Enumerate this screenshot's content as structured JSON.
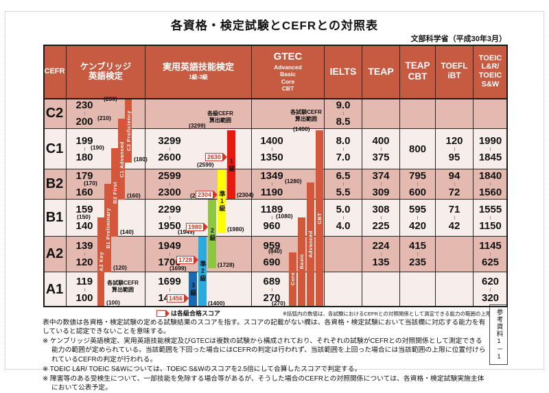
{
  "page": {
    "title": "各資格・検定試験とCEFRとの対照表",
    "source": "文部科学省（平成30年3月）",
    "side_label": "参考資料1－1"
  },
  "columns": [
    {
      "key": "cefr",
      "label": "CEFR"
    },
    {
      "key": "cambridge",
      "label": "ケンブリッジ\n英語検定"
    },
    {
      "key": "eiken",
      "label": "実用英語技能検定",
      "sub": "1級-3級"
    },
    {
      "key": "gtec",
      "label": "GTEC",
      "sub": "Advanced\nBasic\nCore\nCBT"
    },
    {
      "key": "ielts",
      "label": "IELTS"
    },
    {
      "key": "teap",
      "label": "TEAP"
    },
    {
      "key": "teap_cbt",
      "label": "TEAP\nCBT"
    },
    {
      "key": "toefl_ibt",
      "label": "TOEFL\niBT"
    },
    {
      "key": "toeic",
      "label": "TOEIC\nL&R/\nTOEIC\nS&W"
    }
  ],
  "rows": [
    {
      "level": "C2",
      "cambridge": [
        "230",
        "200"
      ],
      "eiken": null,
      "gtec": null,
      "ielts": [
        "9.0",
        "8.5"
      ],
      "teap": null,
      "teap_cbt": null,
      "toefl_ibt": null,
      "toeic": null
    },
    {
      "level": "C1",
      "cambridge": [
        "199",
        "180"
      ],
      "eiken": [
        "3299",
        "2600"
      ],
      "gtec": [
        "1400",
        "1350"
      ],
      "ielts": [
        "8.0",
        "7.0"
      ],
      "teap": [
        "400",
        "375"
      ],
      "teap_cbt": [
        "800"
      ],
      "toefl_ibt": [
        "120",
        "95"
      ],
      "toeic": [
        "1990",
        "1845"
      ]
    },
    {
      "level": "B2",
      "cambridge": [
        "179",
        "160"
      ],
      "eiken": [
        "2599",
        "2300"
      ],
      "gtec": [
        "1349",
        "1190"
      ],
      "ielts": [
        "6.5",
        "5.5"
      ],
      "teap": [
        "374",
        "309"
      ],
      "teap_cbt": [
        "795",
        "600"
      ],
      "toefl_ibt": [
        "94",
        "72"
      ],
      "toeic": [
        "1840",
        "1560"
      ]
    },
    {
      "level": "B1",
      "cambridge": [
        "159",
        "140"
      ],
      "eiken": [
        "2299",
        "1950"
      ],
      "gtec": [
        "1189",
        "960"
      ],
      "ielts": [
        "5.0",
        "4.0"
      ],
      "teap": [
        "308",
        "225"
      ],
      "teap_cbt": [
        "595",
        "420"
      ],
      "toefl_ibt": [
        "71",
        "42"
      ],
      "toeic": [
        "1555",
        "1150"
      ]
    },
    {
      "level": "A2",
      "cambridge": [
        "139",
        "120"
      ],
      "eiken": [
        "1949",
        "1700"
      ],
      "gtec": [
        "959",
        "690"
      ],
      "ielts": null,
      "teap": [
        "224",
        "135"
      ],
      "teap_cbt": [
        "415",
        "235"
      ],
      "toefl_ibt": null,
      "toeic": [
        "1145",
        "625"
      ]
    },
    {
      "level": "A1",
      "cambridge": [
        "119",
        "100"
      ],
      "eiken": [
        "1699",
        "1400"
      ],
      "gtec": [
        "689",
        "270"
      ],
      "ielts": null,
      "teap": null,
      "teap_cbt": null,
      "toefl_ibt": null,
      "toeic": [
        "620",
        "320"
      ]
    }
  ],
  "range_notes": {
    "cambridge": "各試験CEFR\n算出範囲",
    "eiken": "各級CEFR\n算出範囲",
    "gtec": "各試験CEFR\n算出範囲"
  },
  "bars": {
    "cambridge": [
      {
        "label": "A2 Key",
        "top": "(150)",
        "bottom": "(100)",
        "color": "#d3573a"
      },
      {
        "label": "B1 Preliminary",
        "top": "(170)",
        "bottom": "(120)",
        "color": "#d3573a"
      },
      {
        "label": "B2 First",
        "top": "(190)",
        "bottom": "(140)",
        "color": "#d3573a"
      },
      {
        "label": "C1 Advanced",
        "top": "(210)",
        "bottom": "(160)",
        "color": "#d3573a"
      },
      {
        "label": "C2 Proficiency",
        "top": "(230)",
        "bottom": "(180)",
        "color": "#d3573a"
      }
    ],
    "eiken": [
      {
        "label": "3級",
        "top": "(1699)",
        "bottom": "",
        "pass": "1456",
        "color": "#1a69b4"
      },
      {
        "label": "準2級",
        "top": "(1949)",
        "bottom": "(1400)",
        "pass": "1728",
        "color": "#29aae1"
      },
      {
        "label": "2級",
        "top": "(2299)",
        "bottom": "(1728)",
        "pass": "1980",
        "color": "#8dc63f"
      },
      {
        "label": "準1級",
        "top": "(2599)",
        "bottom": "(1980)",
        "pass": "2304",
        "color": "#ffff00"
      },
      {
        "label": "1級",
        "top": "(3299)",
        "bottom": "(2304)",
        "pass": "2630",
        "color": "#e8190f"
      }
    ],
    "gtec": [
      {
        "label": "Core",
        "top": "(840)",
        "bottom": "(270)",
        "color": "#d3573a"
      },
      {
        "label": "Basic",
        "top": "(1080)",
        "bottom": "",
        "color": "#d3573a"
      },
      {
        "label": "Advanced",
        "top": "(1280)",
        "bottom": "",
        "color": "#d3573a"
      },
      {
        "label": "CBT",
        "top": "(1400)",
        "bottom": "",
        "color": "#d3573a"
      }
    ]
  },
  "legend": {
    "pass_score": "は各級合格スコア",
    "bracket_note": "※括弧内の数値は、各試験におけるCEFRとの対照関係として測定できる能力の範囲の上限と下限"
  },
  "notes": [
    "表中の数値は各資格・検定試験の定める試験結果のスコアを指す。スコアの記載がない欄は、各資格・検定試験において当該欄に対応する能力を有していると認定できないことを意味する。",
    "※ ケンブリッジ英語検定、実用英語技能検定及びGTECは複数の試験から構成されており、それぞれの試験がCEFRとの対照関係として測定できる能力の範囲が定められている。当該範囲を下回った場合にはCEFRの判定は行われず、当該範囲を上回った場合には当該範囲の上限に位置付けられているCEFRの判定が行われる。",
    "※ TOEIC L&R/ TOEIC S&Wについては、TOEIC S&Wのスコアを2.5倍にして合算したスコアで判定する。",
    "※ 障害等のある受検生について、一部技能を免除する場合等があるが、そうした場合のCEFRとの対照関係については、各資格・検定試験実施主体において公表予定。"
  ],
  "colors": {
    "header_bg": "#c75b42",
    "row_dark": "#e4bab0",
    "row_light": "#f7edea",
    "bar_red_orange": "#d3573a",
    "eiken_g1": "#e8190f",
    "eiken_pre1": "#ffff00",
    "eiken_g2": "#8dc63f",
    "eiken_pre2": "#29aae1",
    "eiken_g3": "#1a69b4",
    "pass_box": "#cf3a28"
  }
}
